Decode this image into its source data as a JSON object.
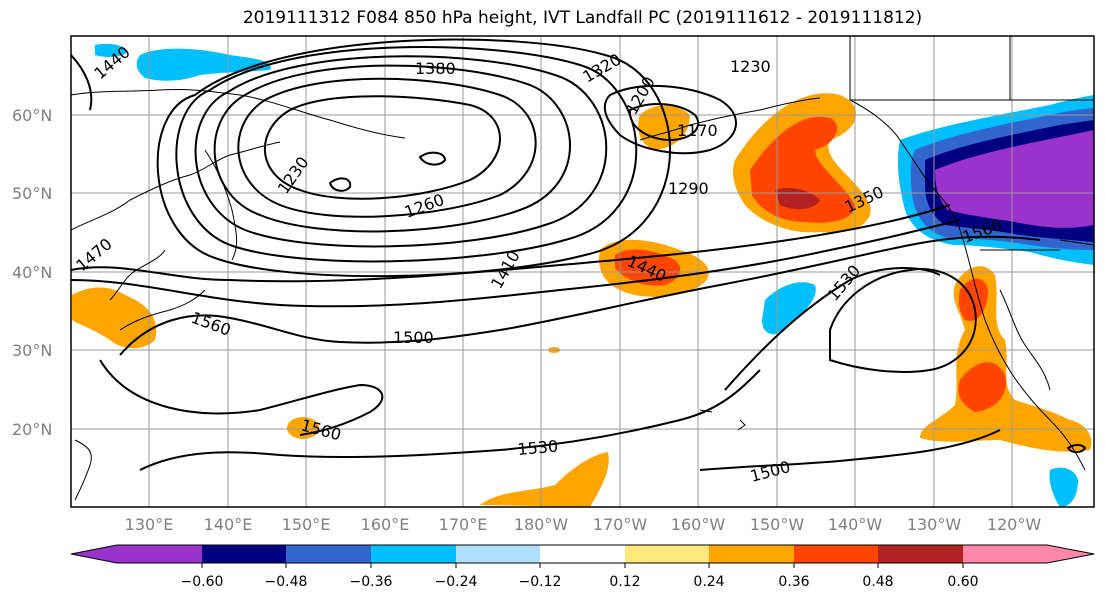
{
  "title": "2019111312 F084 850 hPa height, IVT Landfall PC (2019111612 - 2019111812)",
  "map": {
    "lat_labels": [
      "60°N",
      "50°N",
      "40°N",
      "30°N",
      "20°N"
    ],
    "lon_labels": [
      "130°E",
      "140°E",
      "150°E",
      "160°E",
      "170°E",
      "180°W",
      "170°W",
      "160°W",
      "150°W",
      "140°W",
      "130°W",
      "120°W"
    ]
  },
  "contour_labels": [
    "1440",
    "1380",
    "1320",
    "1230",
    "1290",
    "1200",
    "1170",
    "1230",
    "1260",
    "1290",
    "1350",
    "1470",
    "1410",
    "1440",
    "1560",
    "1500",
    "1530",
    "1560",
    "1560",
    "1530",
    "1500"
  ],
  "colorbar": {
    "colors": [
      "#9933cc",
      "#000080",
      "#3366cc",
      "#00bfff",
      "#b0e0ff",
      "#ffffff",
      "#ffe97f",
      "#ffa500",
      "#ff4500",
      "#b22222",
      "#ff88aa"
    ],
    "ticks": [
      "−0.60",
      "−0.48",
      "−0.36",
      "−0.24",
      "−0.12",
      "0.12",
      "0.24",
      "0.36",
      "0.48",
      "0.60"
    ]
  }
}
